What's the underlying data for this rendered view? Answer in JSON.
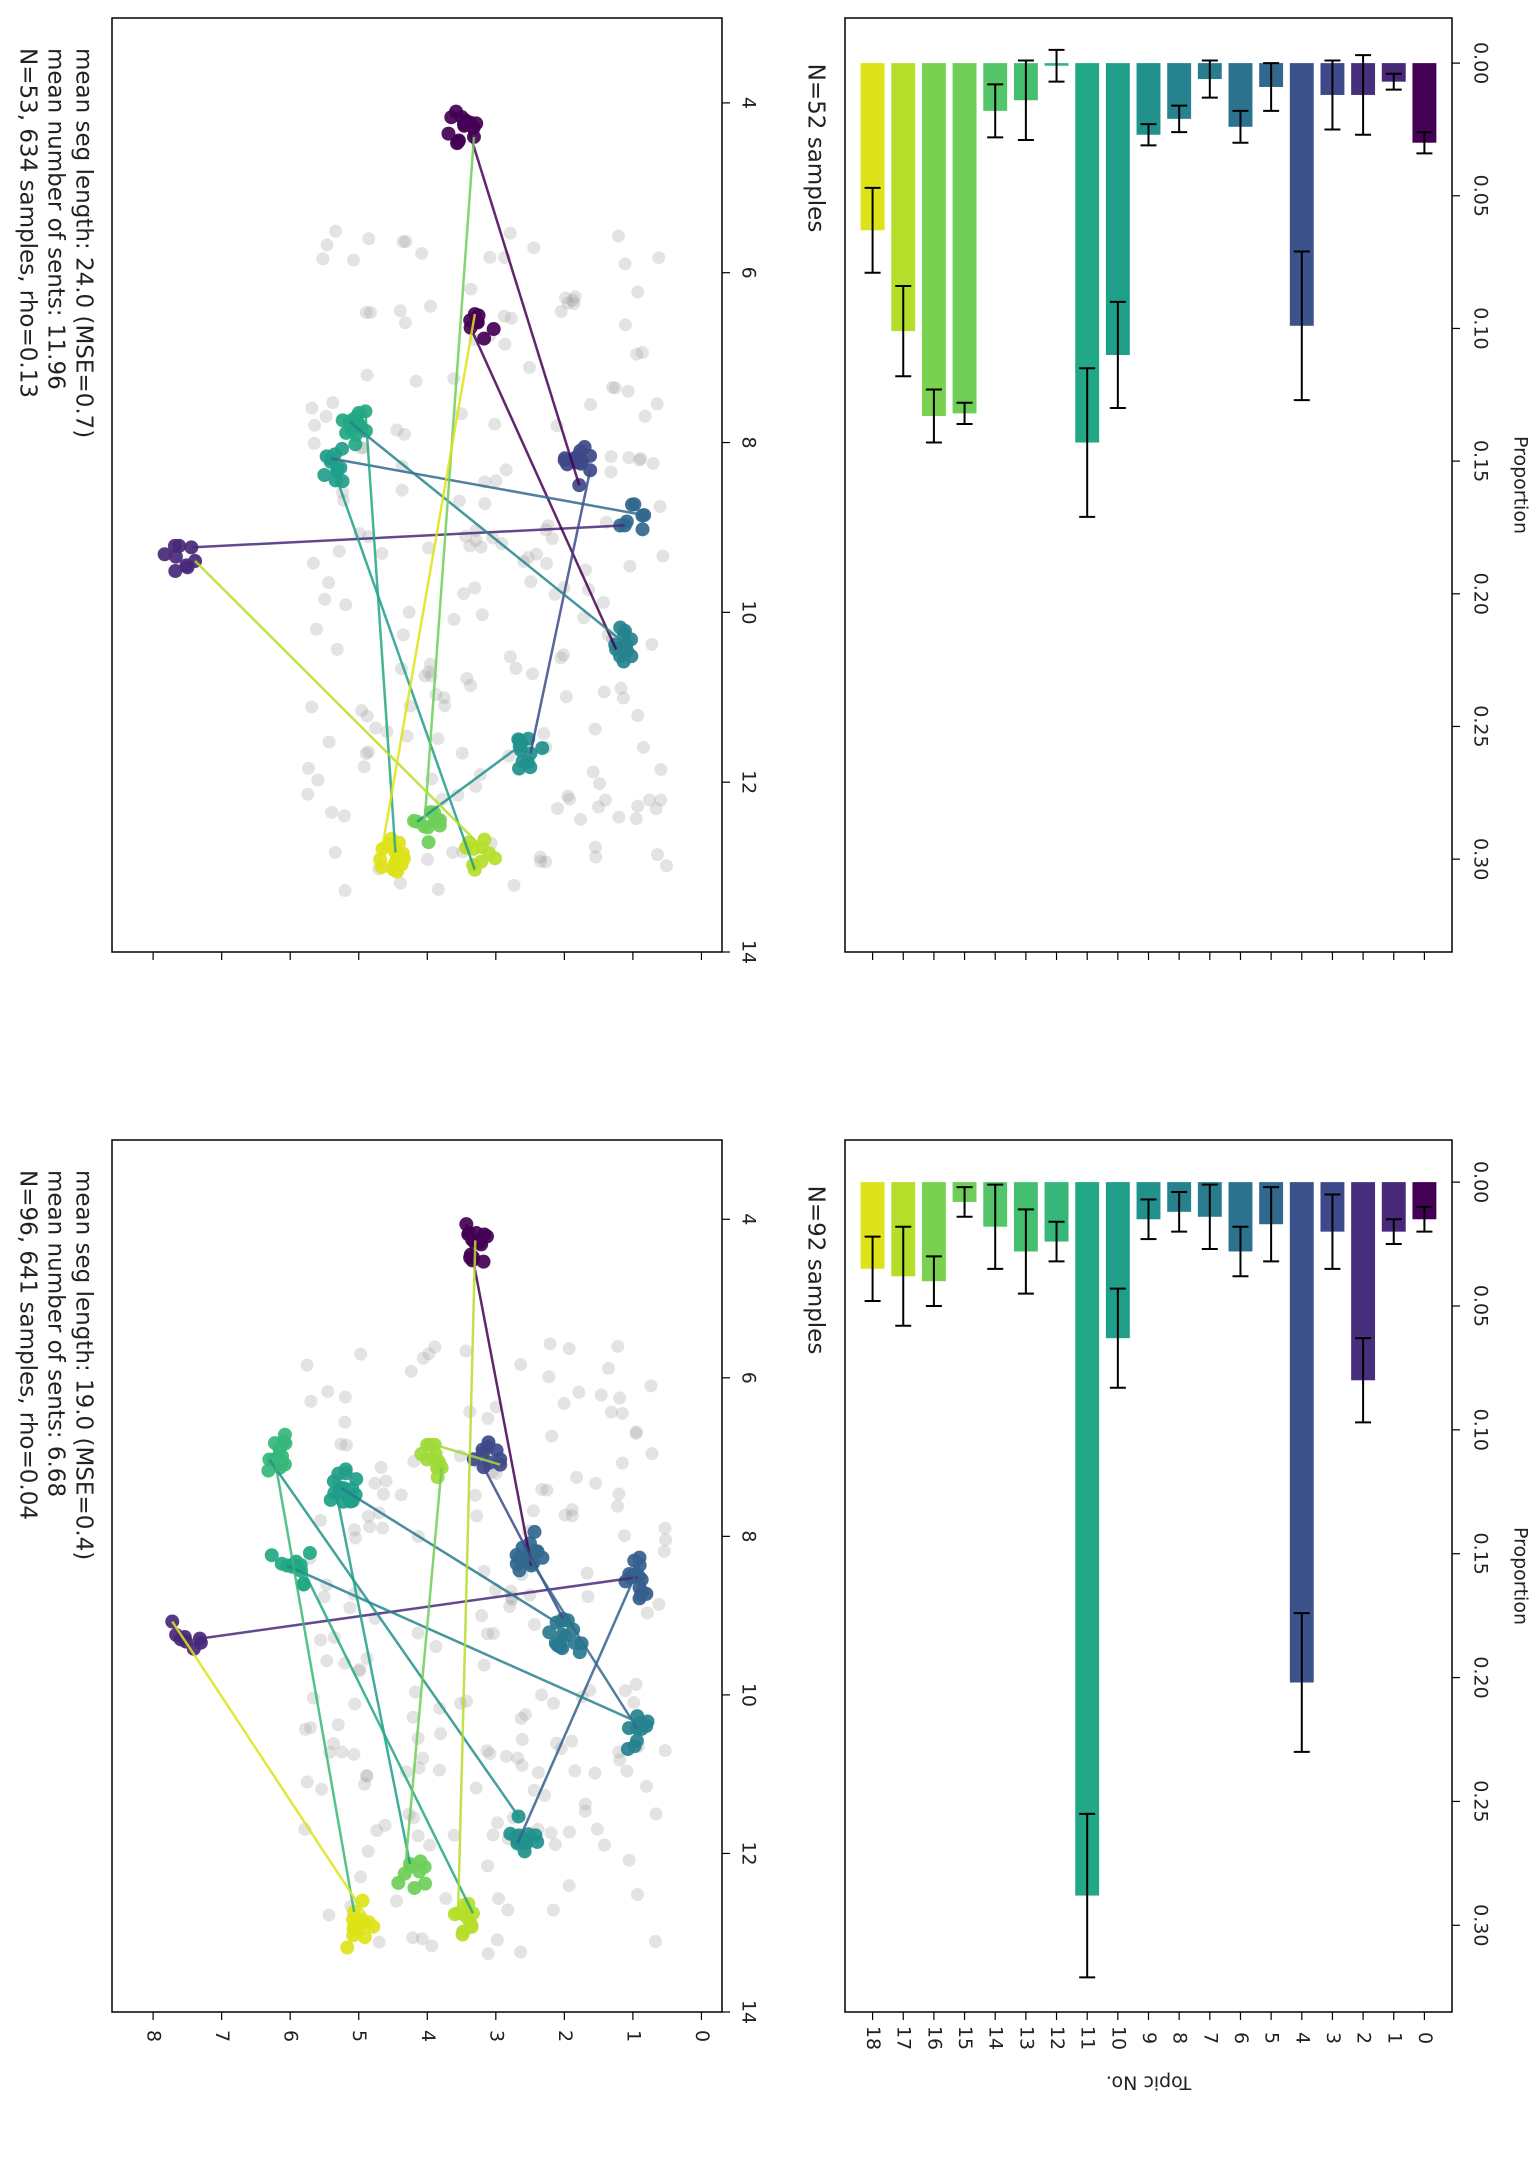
{
  "chart_data": [
    {
      "id": "scatter-bottom",
      "type": "scatter",
      "title_lines": [
        "N=96, 641 samples, rho=0.04",
        "mean number of sents: 6.68",
        "mean seg length: 19.0 (MSE=0.4)"
      ],
      "xticks": [
        "4",
        "6",
        "8",
        "10",
        "12",
        "14"
      ],
      "yticks": [
        "0",
        "1",
        "2",
        "3",
        "4",
        "5",
        "6",
        "7",
        "8"
      ],
      "xlim": [
        3.0,
        14.0
      ],
      "ylim": [
        -0.3,
        8.6
      ],
      "clusters": [
        {
          "topic": 0,
          "x": 4.3,
          "y": 3.3,
          "color": "#440154"
        },
        {
          "topic": 1,
          "x": 9.3,
          "y": 7.5,
          "color": "#482878"
        },
        {
          "topic": 2,
          "x": 7.0,
          "y": 3.0,
          "color": "#3e4989"
        },
        {
          "topic": 3,
          "x": 8.2,
          "y": 2.5,
          "color": "#31688e"
        },
        {
          "topic": 4,
          "x": 8.6,
          "y": 1.0,
          "color": "#355f8d"
        },
        {
          "topic": 5,
          "x": 9.3,
          "y": 2.0,
          "color": "#2a788e"
        },
        {
          "topic": 6,
          "x": 10.4,
          "y": 0.9,
          "color": "#26828e"
        },
        {
          "topic": 7,
          "x": 11.8,
          "y": 2.6,
          "color": "#21918c"
        },
        {
          "topic": 8,
          "x": 7.4,
          "y": 5.2,
          "color": "#1f9e89"
        },
        {
          "topic": 9,
          "x": 8.4,
          "y": 6.0,
          "color": "#22a884"
        },
        {
          "topic": 10,
          "x": 7.0,
          "y": 6.2,
          "color": "#35b779"
        },
        {
          "topic": 11,
          "x": 12.2,
          "y": 4.2,
          "color": "#6ece58"
        },
        {
          "topic": 12,
          "x": 12.8,
          "y": 3.4,
          "color": "#b5de2b"
        },
        {
          "topic": 13,
          "x": 12.9,
          "y": 5.0,
          "color": "#dde318"
        },
        {
          "topic": 14,
          "x": 7.1,
          "y": 3.9,
          "color": "#a0da39"
        }
      ]
    },
    {
      "id": "scatter-top",
      "type": "scatter",
      "title_lines": [
        "N=53, 634 samples, rho=0.13",
        "mean number of sents: 11.96",
        "mean seg length: 24.0 (MSE=0.7)"
      ],
      "xticks": [
        "4",
        "6",
        "8",
        "10",
        "12",
        "14"
      ],
      "xlim": [
        3.0,
        14.0
      ],
      "ylim": [
        -0.3,
        8.6
      ],
      "clusters": [
        {
          "topic": 0,
          "x": 4.3,
          "y": 3.5,
          "color": "#440154"
        },
        {
          "topic": 1,
          "x": 9.3,
          "y": 7.6,
          "color": "#482878"
        },
        {
          "topic": 2,
          "x": 6.7,
          "y": 3.2,
          "color": "#440154"
        },
        {
          "topic": 3,
          "x": 8.2,
          "y": 1.8,
          "color": "#3e4989"
        },
        {
          "topic": 4,
          "x": 8.8,
          "y": 1.0,
          "color": "#31688e"
        },
        {
          "topic": 5,
          "x": 10.4,
          "y": 1.1,
          "color": "#26828e"
        },
        {
          "topic": 6,
          "x": 11.6,
          "y": 2.5,
          "color": "#21918c"
        },
        {
          "topic": 7,
          "x": 8.3,
          "y": 5.3,
          "color": "#1f9e89"
        },
        {
          "topic": 8,
          "x": 7.8,
          "y": 5.0,
          "color": "#22a884"
        },
        {
          "topic": 9,
          "x": 12.5,
          "y": 3.9,
          "color": "#6ece58"
        },
        {
          "topic": 10,
          "x": 12.8,
          "y": 3.2,
          "color": "#b5de2b"
        },
        {
          "topic": 11,
          "x": 12.9,
          "y": 4.5,
          "color": "#dde318"
        }
      ]
    },
    {
      "id": "bar-bottom",
      "type": "bar",
      "title": "N=92 samples",
      "xlabel": "Proportion",
      "ylabel": "Topic No.",
      "xticks": [
        "0.00",
        "0.05",
        "0.10",
        "0.15",
        "0.20",
        "0.25",
        "0.30"
      ],
      "xlim": [
        -0.017,
        0.335
      ],
      "categories": [
        "0",
        "1",
        "2",
        "3",
        "4",
        "5",
        "6",
        "7",
        "8",
        "9",
        "10",
        "11",
        "12",
        "13",
        "14",
        "15",
        "16",
        "17",
        "18"
      ],
      "values": [
        0.015,
        0.02,
        0.08,
        0.02,
        0.202,
        0.017,
        0.028,
        0.014,
        0.012,
        0.015,
        0.063,
        0.288,
        0.024,
        0.028,
        0.018,
        0.008,
        0.04,
        0.038,
        0.035
      ],
      "errors": [
        0.005,
        0.005,
        0.017,
        0.015,
        0.028,
        0.015,
        0.01,
        0.013,
        0.008,
        0.008,
        0.02,
        0.033,
        0.008,
        0.017,
        0.017,
        0.006,
        0.01,
        0.02,
        0.013
      ],
      "colors": [
        "#440154",
        "#482878",
        "#472f7d",
        "#3e4989",
        "#3b528b",
        "#31688e",
        "#2c728e",
        "#287c8e",
        "#26828e",
        "#21918c",
        "#1f9e89",
        "#22a884",
        "#35b779",
        "#44bf70",
        "#54c568",
        "#6ece58",
        "#7ad151",
        "#b5de2b",
        "#dde318"
      ]
    },
    {
      "id": "bar-top",
      "type": "bar",
      "title": "N=52 samples",
      "xlabel": "Proportion",
      "xticks": [
        "0.00",
        "0.05",
        "0.10",
        "0.15",
        "0.20",
        "0.25",
        "0.30"
      ],
      "xlim": [
        -0.017,
        0.335
      ],
      "categories": [
        "0",
        "1",
        "2",
        "3",
        "4",
        "5",
        "6",
        "7",
        "8",
        "9",
        "10",
        "11",
        "12",
        "13",
        "14",
        "15",
        "16",
        "17",
        "18"
      ],
      "values": [
        0.03,
        0.007,
        0.012,
        0.012,
        0.099,
        0.009,
        0.024,
        0.006,
        0.021,
        0.027,
        0.11,
        0.143,
        0.001,
        0.014,
        0.018,
        0.132,
        0.133,
        0.101,
        0.063
      ],
      "errors": [
        0.004,
        0.003,
        0.015,
        0.013,
        0.028,
        0.009,
        0.006,
        0.007,
        0.005,
        0.004,
        0.02,
        0.028,
        0.006,
        0.015,
        0.01,
        0.004,
        0.01,
        0.017,
        0.016
      ],
      "colors": [
        "#440154",
        "#482878",
        "#472f7d",
        "#3e4989",
        "#3b528b",
        "#31688e",
        "#2c728e",
        "#287c8e",
        "#26828e",
        "#21918c",
        "#1f9e89",
        "#22a884",
        "#35b779",
        "#44bf70",
        "#54c568",
        "#6ece58",
        "#7ad151",
        "#b5de2b",
        "#dde318"
      ]
    }
  ]
}
